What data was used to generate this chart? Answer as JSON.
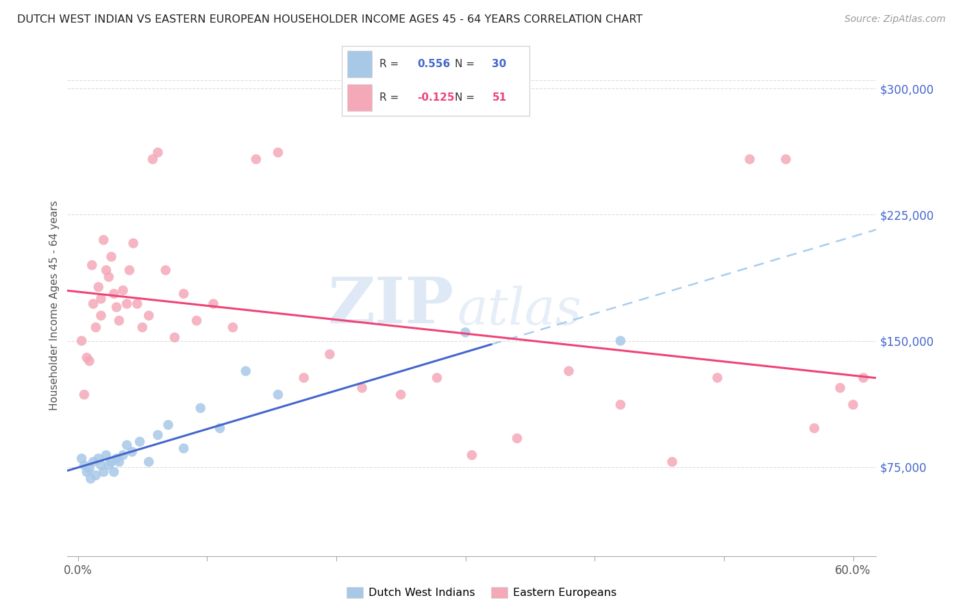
{
  "title": "DUTCH WEST INDIAN VS EASTERN EUROPEAN HOUSEHOLDER INCOME AGES 45 - 64 YEARS CORRELATION CHART",
  "source": "Source: ZipAtlas.com",
  "ylabel": "Householder Income Ages 45 - 64 years",
  "xtick_vals": [
    0.0,
    0.1,
    0.2,
    0.3,
    0.4,
    0.5,
    0.6
  ],
  "xtick_labels_sparse": [
    "0.0%",
    "",
    "",
    "",
    "",
    "",
    "60.0%"
  ],
  "ytick_labels": [
    "$75,000",
    "$150,000",
    "$225,000",
    "$300,000"
  ],
  "ytick_vals": [
    75000,
    150000,
    225000,
    300000
  ],
  "xlim": [
    -0.008,
    0.618
  ],
  "ylim": [
    22000,
    320000
  ],
  "blue_R": "0.556",
  "blue_N": "30",
  "pink_R": "-0.125",
  "pink_N": "51",
  "blue_scatter_color": "#A8C8E8",
  "pink_scatter_color": "#F4A8B8",
  "blue_line_color": "#4466CC",
  "pink_line_color": "#EE4477",
  "dashed_color": "#AACCEE",
  "grid_color": "#DDDDDD",
  "title_color": "#222222",
  "source_color": "#999999",
  "ylabel_color": "#555555",
  "tick_color": "#555555",
  "right_tick_color": "#4466CC",
  "blue_scatter_x": [
    0.003,
    0.005,
    0.007,
    0.009,
    0.01,
    0.012,
    0.014,
    0.016,
    0.018,
    0.02,
    0.022,
    0.024,
    0.026,
    0.028,
    0.03,
    0.032,
    0.035,
    0.038,
    0.042,
    0.048,
    0.055,
    0.062,
    0.07,
    0.082,
    0.095,
    0.11,
    0.13,
    0.155,
    0.3,
    0.42
  ],
  "blue_scatter_y": [
    80000,
    76000,
    72000,
    74000,
    68000,
    78000,
    70000,
    80000,
    76000,
    72000,
    82000,
    76000,
    78000,
    72000,
    80000,
    78000,
    82000,
    88000,
    84000,
    90000,
    78000,
    94000,
    100000,
    86000,
    110000,
    98000,
    132000,
    118000,
    155000,
    150000
  ],
  "pink_scatter_x": [
    0.003,
    0.005,
    0.007,
    0.009,
    0.011,
    0.012,
    0.014,
    0.016,
    0.018,
    0.018,
    0.02,
    0.022,
    0.024,
    0.026,
    0.028,
    0.03,
    0.032,
    0.035,
    0.038,
    0.04,
    0.043,
    0.046,
    0.05,
    0.055,
    0.058,
    0.062,
    0.068,
    0.075,
    0.082,
    0.092,
    0.105,
    0.12,
    0.138,
    0.155,
    0.175,
    0.195,
    0.22,
    0.25,
    0.278,
    0.305,
    0.34,
    0.38,
    0.42,
    0.46,
    0.495,
    0.52,
    0.548,
    0.57,
    0.59,
    0.6,
    0.608
  ],
  "pink_scatter_y": [
    150000,
    118000,
    140000,
    138000,
    195000,
    172000,
    158000,
    182000,
    165000,
    175000,
    210000,
    192000,
    188000,
    200000,
    178000,
    170000,
    162000,
    180000,
    172000,
    192000,
    208000,
    172000,
    158000,
    165000,
    258000,
    262000,
    192000,
    152000,
    178000,
    162000,
    172000,
    158000,
    258000,
    262000,
    128000,
    142000,
    122000,
    118000,
    128000,
    82000,
    92000,
    132000,
    112000,
    78000,
    128000,
    258000,
    258000,
    98000,
    122000,
    112000,
    128000
  ],
  "legend_blue_label": "Dutch West Indians",
  "legend_pink_label": "Eastern Europeans"
}
